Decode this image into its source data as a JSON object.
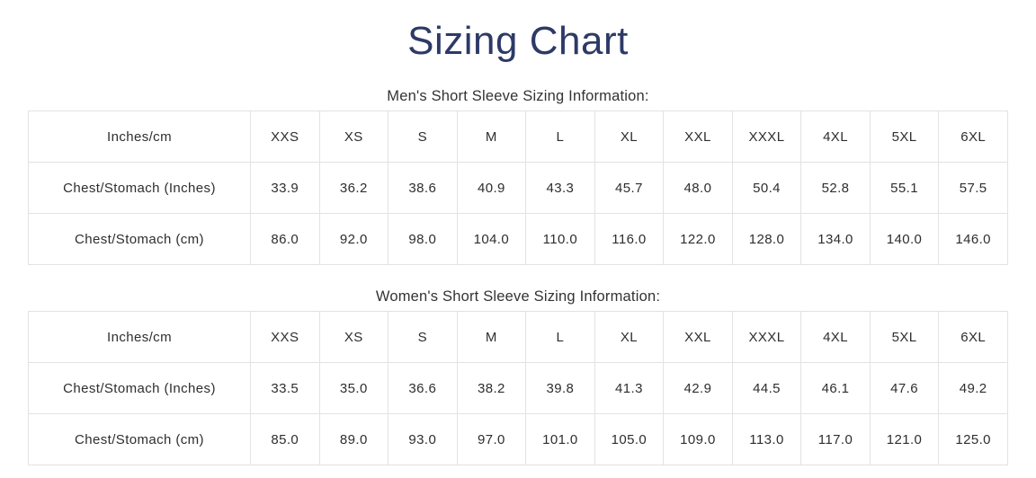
{
  "page": {
    "title": "Sizing Chart"
  },
  "colors": {
    "title": "#2d3a66",
    "text": "#2e2e2e",
    "border": "#e2e2e2",
    "background": "#ffffff"
  },
  "tables": [
    {
      "caption": "Men's Short Sleeve Sizing Information:",
      "headers": [
        "Inches/cm",
        "XXS",
        "XS",
        "S",
        "M",
        "L",
        "XL",
        "XXL",
        "XXXL",
        "4XL",
        "5XL",
        "6XL"
      ],
      "rows": [
        {
          "label": "Chest/Stomach (Inches)",
          "values": [
            "33.9",
            "36.2",
            "38.6",
            "40.9",
            "43.3",
            "45.7",
            "48.0",
            "50.4",
            "52.8",
            "55.1",
            "57.5"
          ]
        },
        {
          "label": "Chest/Stomach (cm)",
          "values": [
            "86.0",
            "92.0",
            "98.0",
            "104.0",
            "110.0",
            "116.0",
            "122.0",
            "128.0",
            "134.0",
            "140.0",
            "146.0"
          ]
        }
      ]
    },
    {
      "caption": "Women's Short Sleeve Sizing Information:",
      "headers": [
        "Inches/cm",
        "XXS",
        "XS",
        "S",
        "M",
        "L",
        "XL",
        "XXL",
        "XXXL",
        "4XL",
        "5XL",
        "6XL"
      ],
      "rows": [
        {
          "label": "Chest/Stomach (Inches)",
          "values": [
            "33.5",
            "35.0",
            "36.6",
            "38.2",
            "39.8",
            "41.3",
            "42.9",
            "44.5",
            "46.1",
            "47.6",
            "49.2"
          ]
        },
        {
          "label": "Chest/Stomach (cm)",
          "values": [
            "85.0",
            "89.0",
            "93.0",
            "97.0",
            "101.0",
            "105.0",
            "109.0",
            "113.0",
            "117.0",
            "121.0",
            "125.0"
          ]
        }
      ]
    }
  ]
}
